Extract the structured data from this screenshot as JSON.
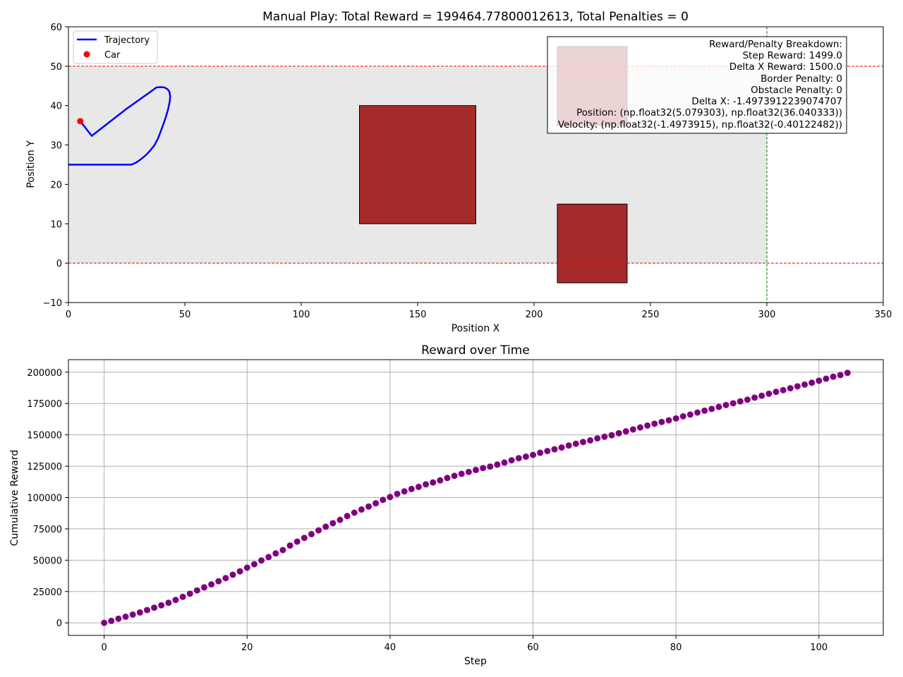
{
  "chart_data": [
    {
      "type": "line",
      "title": "Manual Play: Total Reward = 199464.77800012613, Total Penalties = 0",
      "xlabel": "Position X",
      "ylabel": "Position Y",
      "xlim": [
        0,
        350
      ],
      "ylim": [
        -10,
        60
      ],
      "xticks": [
        0,
        50,
        100,
        150,
        200,
        250,
        300,
        350
      ],
      "yticks": [
        -10,
        0,
        10,
        20,
        30,
        40,
        50,
        60
      ],
      "grid": false,
      "legend_position": "top-left",
      "legend": [
        {
          "label": "Trajectory",
          "kind": "line",
          "color": "#0000ff"
        },
        {
          "label": "Car",
          "kind": "marker",
          "color": "#ff0000"
        }
      ],
      "road": {
        "y_range": [
          0,
          50
        ],
        "x_end": 300,
        "color": "#e8e8e8"
      },
      "borders": {
        "y_values": [
          0,
          50
        ],
        "color": "#ff0000",
        "style": "dashed"
      },
      "finish_line": {
        "x": 300,
        "color": "#008000",
        "style": "dashed"
      },
      "obstacles": [
        {
          "x": [
            125,
            175
          ],
          "y": [
            10,
            40
          ],
          "color": "#a52a2a"
        },
        {
          "x": [
            210,
            240
          ],
          "y": [
            -5,
            15
          ],
          "color": "#a52a2a"
        },
        {
          "x": [
            210,
            240
          ],
          "y": [
            35,
            55
          ],
          "color": "#a52a2a"
        }
      ],
      "trajectory": {
        "x": [
          0,
          5,
          10,
          15,
          20,
          25,
          27,
          29,
          31,
          33,
          35,
          37,
          38.5,
          40,
          41.5,
          42.8,
          43.5,
          43.7,
          43.4,
          42.5,
          41.2,
          39.5,
          37.8,
          35,
          30,
          25,
          20,
          15,
          10,
          5.08
        ],
        "y": [
          25,
          25,
          25,
          25,
          25,
          25,
          25,
          25.5,
          26.3,
          27.3,
          28.5,
          30,
          31.7,
          34,
          36.5,
          39,
          41,
          42.3,
          43.5,
          44.2,
          44.6,
          44.7,
          44.6,
          43.4,
          41.3,
          39.2,
          36.9,
          34.6,
          32.3,
          36.04
        ],
        "color": "#0000ff"
      },
      "car": {
        "x": 5.079303,
        "y": 36.040333,
        "color": "#ff0000"
      },
      "info_box": {
        "lines": [
          "Reward/Penalty Breakdown:",
          "Step Reward: 1499.0",
          "Delta X Reward: 1500.0",
          "Border Penalty: 0",
          "Obstacle Penalty: 0",
          "Delta X: -1.4973912239074707",
          "Position: (np.float32(5.079303), np.float32(36.040333))",
          "Velocity: (np.float32(-1.4973915), np.float32(-0.40122482))"
        ],
        "position": "top-right"
      }
    },
    {
      "type": "scatter",
      "title": "Reward over Time",
      "xlabel": "Step",
      "ylabel": "Cumulative Reward",
      "xlim": [
        -5,
        109
      ],
      "ylim": [
        -10000,
        210000
      ],
      "xticks": [
        0,
        20,
        40,
        60,
        80,
        100
      ],
      "yticks": [
        0,
        25000,
        50000,
        75000,
        100000,
        125000,
        150000,
        175000,
        200000
      ],
      "grid": true,
      "marker_color": "#800080",
      "steps_start": 0,
      "steps_end": 104,
      "values": [
        0,
        1600,
        3300,
        4900,
        6600,
        8300,
        10200,
        12100,
        14000,
        16000,
        18300,
        20800,
        23300,
        25900,
        28300,
        30700,
        33200,
        35700,
        38400,
        41100,
        44000,
        46800,
        49800,
        52500,
        55400,
        58100,
        61700,
        64800,
        67800,
        70800,
        73800,
        76700,
        79500,
        82200,
        85200,
        87900,
        90400,
        92800,
        95400,
        98100,
        100400,
        102900,
        104900,
        106800,
        108500,
        110500,
        112000,
        113700,
        115600,
        117300,
        118900,
        120400,
        122000,
        123500,
        124700,
        126300,
        127900,
        129700,
        131400,
        132600,
        134000,
        135700,
        137100,
        138500,
        139900,
        141500,
        142900,
        144300,
        145600,
        147200,
        148500,
        149700,
        151300,
        152800,
        154300,
        155900,
        157400,
        158900,
        160300,
        161600,
        163100,
        164800,
        166200,
        167800,
        169300,
        170700,
        172300,
        173800,
        175200,
        176700,
        178100,
        179700,
        181200,
        182800,
        184300,
        185700,
        187200,
        188700,
        190100,
        191600,
        193200,
        194800,
        196400,
        197700,
        199465
      ]
    }
  ]
}
